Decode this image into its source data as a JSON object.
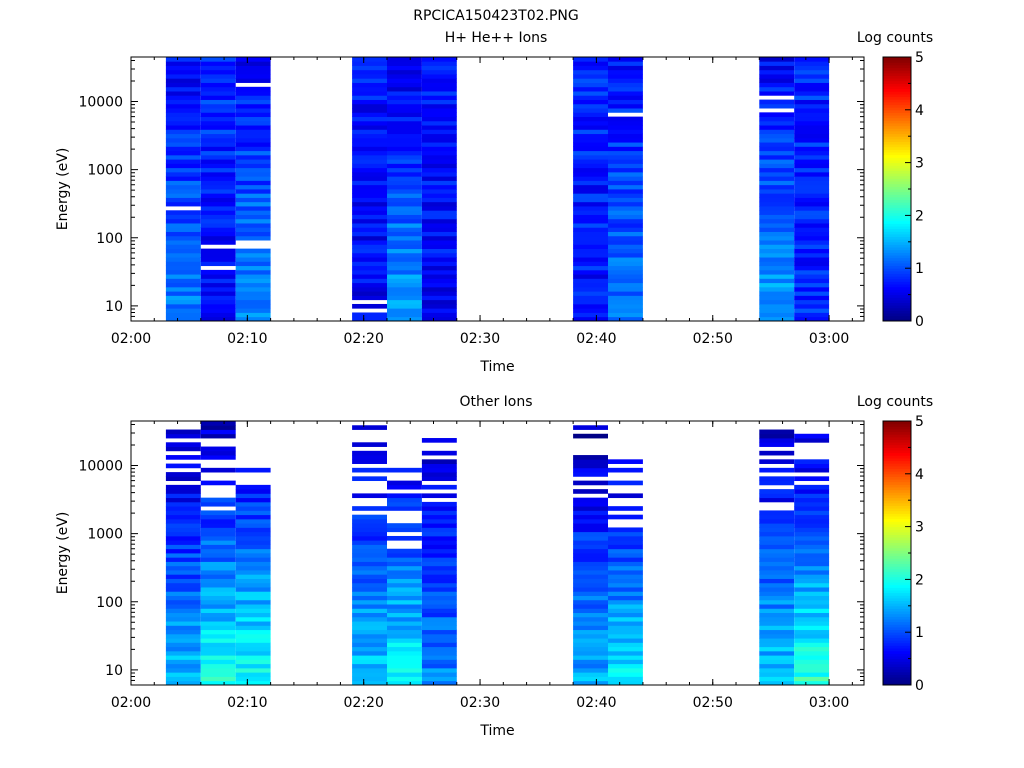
{
  "figure": {
    "title": "RPCICA150423T02.PNG"
  },
  "chart_data": [
    {
      "type": "heatmap",
      "title": "H+ He++ Ions",
      "xlabel": "Time",
      "ylabel": "Energy (eV)",
      "yscale": "log",
      "ylim": [
        6,
        45000
      ],
      "xlim": [
        "02:00",
        "03:03"
      ],
      "xticks": [
        "02:00",
        "02:10",
        "02:20",
        "02:30",
        "02:40",
        "02:50",
        "03:00"
      ],
      "yticks": [
        {
          "value": 10,
          "label": "10"
        },
        {
          "value": 100,
          "label": "100"
        },
        {
          "value": 1000,
          "label": "1000"
        },
        {
          "value": 10000,
          "label": "10000"
        }
      ],
      "colorbar": {
        "label": "Log counts",
        "range": [
          0,
          5
        ],
        "ticks": [
          "0",
          "1",
          "2",
          "3",
          "4",
          "5"
        ]
      },
      "columns": [
        {
          "start": "02:03",
          "end": "02:06",
          "low_mean": 1.3,
          "high_mean": 0.6,
          "seed": 11,
          "gaps": [
            280
          ]
        },
        {
          "start": "02:06",
          "end": "02:09",
          "low_mean": 0.6,
          "high_mean": 0.9,
          "seed": 23,
          "gaps": [
            35,
            70
          ]
        },
        {
          "start": "02:09",
          "end": "02:12",
          "low_mean": 1.4,
          "high_mean": 0.6,
          "seed": 37,
          "gaps": [
            70,
            85,
            18500
          ]
        },
        {
          "start": "02:19",
          "end": "02:22",
          "low_mean": 0.6,
          "high_mean": 0.7,
          "seed": 41,
          "gaps": [
            9,
            12
          ],
          "bottom_fill": 0.8
        },
        {
          "start": "02:22",
          "end": "02:25",
          "low_mean": 1.5,
          "high_mean": 0.5,
          "seed": 53,
          "gaps": []
        },
        {
          "start": "02:25",
          "end": "02:28",
          "low_mean": 0.6,
          "high_mean": 0.8,
          "seed": 67,
          "gaps": []
        },
        {
          "start": "02:38",
          "end": "02:41",
          "low_mean": 0.7,
          "high_mean": 0.8,
          "seed": 71,
          "gaps": []
        },
        {
          "start": "02:41",
          "end": "02:44",
          "low_mean": 1.2,
          "high_mean": 0.7,
          "seed": 83,
          "gaps": [
            6500
          ]
        },
        {
          "start": "02:54",
          "end": "02:57",
          "low_mean": 1.5,
          "high_mean": 0.6,
          "seed": 97,
          "gaps": [
            7500,
            12000
          ]
        },
        {
          "start": "02:57",
          "end": "03:00",
          "low_mean": 0.8,
          "high_mean": 0.8,
          "seed": 101,
          "gaps": []
        }
      ]
    },
    {
      "type": "heatmap",
      "title": "Other Ions",
      "xlabel": "Time",
      "ylabel": "Energy (eV)",
      "yscale": "log",
      "ylim": [
        6,
        45000
      ],
      "xlim": [
        "02:00",
        "03:03"
      ],
      "xticks": [
        "02:00",
        "02:10",
        "02:20",
        "02:30",
        "02:40",
        "02:50",
        "03:00"
      ],
      "yticks": [
        {
          "value": 10,
          "label": "10"
        },
        {
          "value": 100,
          "label": "100"
        },
        {
          "value": 1000,
          "label": "1000"
        },
        {
          "value": 10000,
          "label": "10000"
        }
      ],
      "colorbar": {
        "label": "Log counts",
        "range": [
          0,
          5
        ],
        "ticks": [
          "0",
          "1",
          "2",
          "3",
          "4",
          "5"
        ]
      },
      "columns": [
        {
          "start": "02:03",
          "end": "02:06",
          "low_mean": 1.6,
          "high_mean": 0.2,
          "seed": 13,
          "sparse_above": 4800,
          "top": 30000
        },
        {
          "start": "02:06",
          "end": "02:09",
          "low_mean": 2.0,
          "high_mean": 0.3,
          "seed": 29,
          "sparse_above": 1300,
          "top": 42000
        },
        {
          "start": "02:09",
          "end": "02:12",
          "low_mean": 2.0,
          "high_mean": 0.3,
          "seed": 31,
          "sparse_above": 4500,
          "top": 9000
        },
        {
          "start": "02:19",
          "end": "02:22",
          "low_mean": 1.7,
          "high_mean": 0.3,
          "seed": 43,
          "sparse_above": 1800,
          "top": 35000
        },
        {
          "start": "02:22",
          "end": "02:25",
          "low_mean": 1.9,
          "high_mean": 0.3,
          "seed": 59,
          "sparse_above": 600,
          "top": 10500
        },
        {
          "start": "02:25",
          "end": "02:28",
          "low_mean": 1.3,
          "high_mean": 0.3,
          "seed": 61,
          "sparse_above": 2500,
          "top": 28000
        },
        {
          "start": "02:38",
          "end": "02:41",
          "low_mean": 1.5,
          "high_mean": 0.2,
          "seed": 73,
          "sparse_above": 3200,
          "top": 38000
        },
        {
          "start": "02:41",
          "end": "02:44",
          "low_mean": 1.8,
          "high_mean": 0.2,
          "seed": 89,
          "sparse_above": 900,
          "top": 11000
        },
        {
          "start": "02:54",
          "end": "02:57",
          "low_mean": 1.7,
          "high_mean": 0.2,
          "seed": 103,
          "sparse_above": 1900,
          "top": 40000
        },
        {
          "start": "02:57",
          "end": "03:00",
          "low_mean": 2.1,
          "high_mean": 0.3,
          "seed": 107,
          "sparse_above": 4500,
          "top": 32000
        }
      ]
    }
  ]
}
